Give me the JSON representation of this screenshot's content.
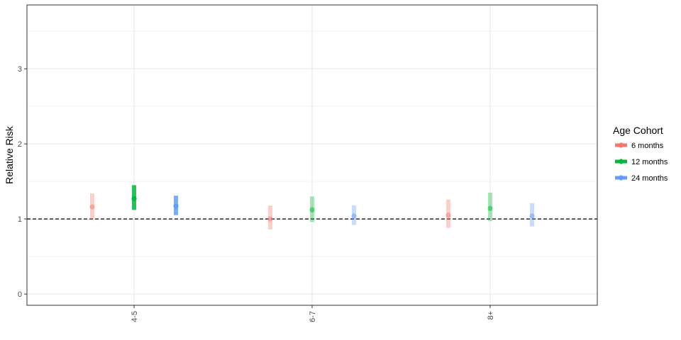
{
  "chart_data": {
    "type": "scatter",
    "title": "",
    "xlabel": "",
    "ylabel": "Relative Risk",
    "categories": [
      "4-5",
      "6-7",
      "8+"
    ],
    "yticks": [
      0,
      1,
      2,
      3
    ],
    "ylim": [
      -0.15,
      3.85
    ],
    "reference_line": 1,
    "grid": true,
    "legend": {
      "title": "Age Cohort",
      "placement": "right"
    },
    "series": [
      {
        "name": "6 months",
        "color": "#F8766D",
        "points": [
          {
            "category": "4-5",
            "estimate": 1.16,
            "lower": 1.0,
            "upper": 1.34,
            "alpha": 0.35
          },
          {
            "category": "6-7",
            "estimate": 1.0,
            "lower": 0.86,
            "upper": 1.18,
            "alpha": 0.35
          },
          {
            "category": "8+",
            "estimate": 1.05,
            "lower": 0.88,
            "upper": 1.26,
            "alpha": 0.35
          }
        ]
      },
      {
        "name": "12 months",
        "color": "#00BA38",
        "points": [
          {
            "category": "4-5",
            "estimate": 1.27,
            "lower": 1.12,
            "upper": 1.45,
            "alpha": 0.85
          },
          {
            "category": "6-7",
            "estimate": 1.12,
            "lower": 0.96,
            "upper": 1.3,
            "alpha": 0.35
          },
          {
            "category": "8+",
            "estimate": 1.14,
            "lower": 0.97,
            "upper": 1.35,
            "alpha": 0.35
          }
        ]
      },
      {
        "name": "24 months",
        "color": "#619CFF",
        "points": [
          {
            "category": "4-5",
            "estimate": 1.17,
            "lower": 1.05,
            "upper": 1.31,
            "alpha": 0.85
          },
          {
            "category": "6-7",
            "estimate": 1.04,
            "lower": 0.92,
            "upper": 1.18,
            "alpha": 0.35
          },
          {
            "category": "8+",
            "estimate": 1.04,
            "lower": 0.9,
            "upper": 1.21,
            "alpha": 0.35
          }
        ]
      }
    ]
  }
}
